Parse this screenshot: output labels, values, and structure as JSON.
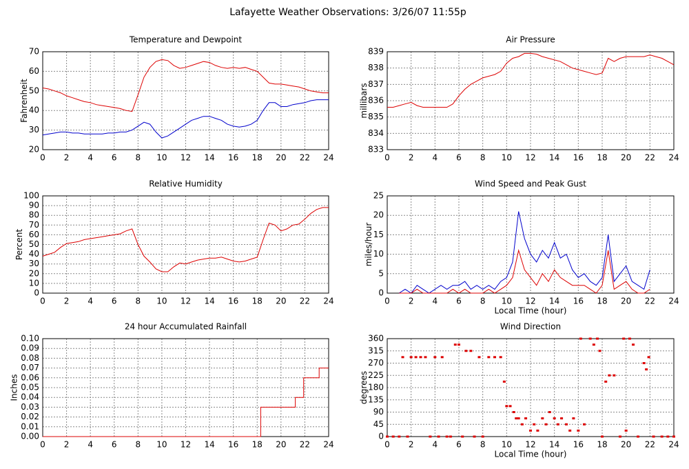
{
  "title": "Lafayette Weather Observations: 3/26/07 11:55p",
  "chart_data": [
    {
      "type": "line",
      "title": "Temperature and Dewpoint",
      "ylabel": "Fahrenheit",
      "grid": true,
      "xlim": [
        0,
        24
      ],
      "xticks": [
        0,
        2,
        4,
        6,
        8,
        10,
        12,
        14,
        16,
        18,
        20,
        22,
        24
      ],
      "ylim": [
        20,
        70
      ],
      "yticks": [
        20,
        30,
        40,
        50,
        60,
        70
      ],
      "x": [
        0,
        0.5,
        1,
        1.5,
        2,
        2.5,
        3,
        3.5,
        4,
        4.5,
        5,
        5.5,
        6,
        6.5,
        7,
        7.5,
        8,
        8.5,
        9,
        9.5,
        10,
        10.5,
        11,
        11.5,
        12,
        12.5,
        13,
        13.5,
        14,
        14.5,
        15,
        15.5,
        16,
        16.5,
        17,
        17.5,
        18,
        18.5,
        19,
        19.5,
        20,
        20.5,
        21,
        21.5,
        22,
        22.5,
        23,
        23.5,
        24
      ],
      "series": [
        {
          "color": "#dd0000",
          "values": [
            51.5,
            51,
            50,
            49,
            47.5,
            46.5,
            45.5,
            44.5,
            44,
            43,
            42.5,
            42,
            41.5,
            41,
            40,
            39.5,
            48,
            57,
            62,
            65,
            66,
            65.5,
            63,
            61.5,
            62,
            63,
            64,
            65,
            64.5,
            63,
            62,
            61.5,
            62,
            61.5,
            62,
            61,
            60,
            57,
            54,
            53.5,
            53.5,
            53,
            52.5,
            52,
            51,
            50,
            49.5,
            49,
            49
          ]
        },
        {
          "color": "#0000cc",
          "values": [
            27.5,
            28,
            28.5,
            29,
            29,
            28.5,
            28.5,
            28,
            28,
            28,
            28,
            28.5,
            28.5,
            29,
            29,
            30,
            32,
            34,
            33,
            29,
            26,
            27,
            29,
            31,
            33,
            35,
            36,
            37,
            37,
            36,
            35,
            33,
            32,
            31.5,
            32,
            33,
            35,
            40,
            44,
            44,
            42,
            42,
            43,
            43.5,
            44,
            45,
            45.5,
            45.5,
            45.5
          ]
        }
      ]
    },
    {
      "type": "line",
      "title": "Air Pressure",
      "ylabel": "millibars",
      "grid": true,
      "xlim": [
        0,
        24
      ],
      "xticks": [
        0,
        2,
        4,
        6,
        8,
        10,
        12,
        14,
        16,
        18,
        20,
        22,
        24
      ],
      "ylim": [
        833,
        839
      ],
      "yticks": [
        833,
        834,
        835,
        836,
        837,
        838,
        839
      ],
      "x": [
        0,
        0.5,
        1,
        1.5,
        2,
        2.5,
        3,
        3.5,
        4,
        4.5,
        5,
        5.5,
        6,
        6.5,
        7,
        7.5,
        8,
        8.5,
        9,
        9.5,
        10,
        10.5,
        11,
        11.5,
        12,
        12.5,
        13,
        13.5,
        14,
        14.5,
        15,
        15.5,
        16,
        16.5,
        17,
        17.5,
        18,
        18.5,
        19,
        19.5,
        20,
        20.5,
        21,
        21.5,
        22,
        22.5,
        23,
        23.5,
        24
      ],
      "series": [
        {
          "color": "#dd0000",
          "values": [
            835.6,
            835.6,
            835.7,
            835.8,
            835.9,
            835.7,
            835.6,
            835.6,
            835.6,
            835.6,
            835.6,
            835.8,
            836.3,
            836.7,
            837,
            837.2,
            837.4,
            837.5,
            837.6,
            837.8,
            838.3,
            838.6,
            838.7,
            838.9,
            838.9,
            838.85,
            838.7,
            838.6,
            838.5,
            838.4,
            838.2,
            838,
            837.9,
            837.8,
            837.7,
            837.6,
            837.7,
            838.6,
            838.4,
            838.6,
            838.7,
            838.7,
            838.7,
            838.7,
            838.8,
            838.7,
            838.6,
            838.4,
            838.2
          ]
        }
      ]
    },
    {
      "type": "line",
      "title": "Relative Humidity",
      "ylabel": "Percent",
      "grid": true,
      "xlim": [
        0,
        24
      ],
      "xticks": [
        0,
        2,
        4,
        6,
        8,
        10,
        12,
        14,
        16,
        18,
        20,
        22,
        24
      ],
      "ylim": [
        0,
        100
      ],
      "yticks": [
        0,
        10,
        20,
        30,
        40,
        50,
        60,
        70,
        80,
        90,
        100
      ],
      "x": [
        0,
        0.5,
        1,
        1.5,
        2,
        2.5,
        3,
        3.5,
        4,
        4.5,
        5,
        5.5,
        6,
        6.5,
        7,
        7.5,
        8,
        8.5,
        9,
        9.5,
        10,
        10.5,
        11,
        11.5,
        12,
        12.5,
        13,
        13.5,
        14,
        14.5,
        15,
        15.5,
        16,
        16.5,
        17,
        17.5,
        18,
        18.5,
        19,
        19.5,
        20,
        20.5,
        21,
        21.5,
        22,
        22.5,
        23,
        23.5,
        24
      ],
      "series": [
        {
          "color": "#dd0000",
          "values": [
            38,
            40,
            42,
            47,
            51,
            52,
            53,
            55,
            56,
            57,
            58,
            59,
            60,
            61,
            64,
            66,
            50,
            38,
            32,
            25,
            22,
            22,
            27,
            31,
            30,
            32,
            34,
            35,
            36,
            36,
            37,
            35,
            33,
            32,
            33,
            35,
            37,
            55,
            72,
            70,
            64,
            66,
            70,
            71,
            76,
            82,
            86,
            88,
            88
          ]
        }
      ]
    },
    {
      "type": "line",
      "title": "Wind Speed and Peak Gust",
      "xlabel": "Local Time (hour)",
      "ylabel": "miles/hour",
      "grid": true,
      "xlim": [
        0,
        24
      ],
      "xticks": [
        0,
        2,
        4,
        6,
        8,
        10,
        12,
        14,
        16,
        18,
        20,
        22,
        24
      ],
      "ylim": [
        0,
        25
      ],
      "yticks": [
        0,
        5,
        10,
        15,
        20,
        25
      ],
      "x": [
        0,
        0.5,
        1,
        1.5,
        2,
        2.5,
        3,
        3.5,
        4,
        4.5,
        5,
        5.5,
        6,
        6.5,
        7,
        7.5,
        8,
        8.5,
        9,
        9.5,
        10,
        10.5,
        11,
        11.5,
        12,
        12.5,
        13,
        13.5,
        14,
        14.5,
        15,
        15.5,
        16,
        16.5,
        17,
        17.5,
        18,
        18.5,
        19,
        19.5,
        20,
        20.5,
        21,
        21.5,
        22,
        22.5,
        23,
        23.5,
        24
      ],
      "series": [
        {
          "color": "#0000cc",
          "values": [
            null,
            null,
            0,
            1,
            0,
            2,
            1,
            0,
            1,
            2,
            1,
            2,
            2,
            3,
            1,
            2,
            1,
            2,
            1,
            3,
            4,
            8,
            21,
            14,
            10,
            8,
            11,
            9,
            13,
            9,
            10,
            6,
            4,
            5,
            3,
            2,
            4,
            15,
            3,
            5,
            7,
            3,
            2,
            1,
            6,
            null,
            null,
            null,
            null
          ]
        },
        {
          "color": "#dd0000",
          "values": [
            null,
            null,
            0,
            0,
            0,
            1,
            0,
            0,
            0,
            0,
            0,
            1,
            0,
            1,
            0,
            0,
            0,
            1,
            0,
            1,
            2,
            4,
            11,
            6,
            4,
            2,
            5,
            3,
            6,
            4,
            3,
            2,
            2,
            2,
            1,
            0,
            2,
            11,
            1,
            2,
            3,
            1,
            0,
            0,
            1,
            null,
            null,
            null,
            null
          ]
        }
      ]
    },
    {
      "type": "line",
      "title": "24 hour Accumulated Rainfall",
      "ylabel": "Inches",
      "grid": true,
      "xlim": [
        0,
        24
      ],
      "xticks": [
        0,
        2,
        4,
        6,
        8,
        10,
        12,
        14,
        16,
        18,
        20,
        22,
        24
      ],
      "ylim": [
        0,
        0.1
      ],
      "yticks": [
        {
          "value": 0,
          "label": "0.00"
        },
        {
          "value": 0.01,
          "label": "0.01"
        },
        {
          "value": 0.02,
          "label": "0.02"
        },
        {
          "value": 0.03,
          "label": "0.03"
        },
        {
          "value": 0.04,
          "label": "0.04"
        },
        {
          "value": 0.05,
          "label": "0.05"
        },
        {
          "value": 0.06,
          "label": "0.06"
        },
        {
          "value": 0.07,
          "label": "0.07"
        },
        {
          "value": 0.08,
          "label": "0.08"
        },
        {
          "value": 0.09,
          "label": "0.09"
        },
        {
          "value": 0.1,
          "label": "0.10"
        }
      ],
      "x": [
        0,
        18.3,
        18.3,
        21.2,
        21.2,
        21.9,
        21.9,
        23.2,
        23.2,
        24
      ],
      "series": [
        {
          "color": "#dd0000",
          "values": [
            0,
            0,
            0.03,
            0.03,
            0.04,
            0.04,
            0.06,
            0.06,
            0.07,
            0.07
          ]
        }
      ]
    },
    {
      "type": "scatter",
      "title": "Wind Direction",
      "xlabel": "Local Time (hour)",
      "ylabel": "degrees",
      "grid": true,
      "xlim": [
        0,
        24
      ],
      "xticks": [
        0,
        2,
        4,
        6,
        8,
        10,
        12,
        14,
        16,
        18,
        20,
        22,
        24
      ],
      "ylim": [
        0,
        360
      ],
      "yticks": [
        0,
        45,
        90,
        135,
        180,
        225,
        270,
        315,
        360
      ],
      "x": [
        0,
        0.5,
        1,
        1.3,
        1.7,
        2,
        2.4,
        2.8,
        3.2,
        3.6,
        4,
        4.3,
        4.6,
        5,
        5.3,
        5.7,
        6,
        6.3,
        6.6,
        7,
        7.3,
        7.7,
        8,
        8.5,
        9,
        9.5,
        9.8,
        10,
        10.3,
        10.6,
        10.8,
        11,
        11.3,
        11.6,
        12,
        12.3,
        12.6,
        13,
        13.3,
        13.6,
        14,
        14.3,
        14.6,
        15,
        15.3,
        15.6,
        16,
        16.2,
        16.5,
        17,
        17.3,
        17.6,
        17.8,
        18,
        18.3,
        18.6,
        19,
        19.5,
        19.8,
        20,
        20.3,
        20.6,
        21,
        21.5,
        21.7,
        21.9,
        22.3,
        23,
        23.5,
        24
      ],
      "series": [
        {
          "color": "#dd0000",
          "values": [
            0,
            0,
            0,
            292,
            0,
            292,
            292,
            292,
            292,
            0,
            292,
            0,
            292,
            0,
            0,
            338,
            338,
            0,
            315,
            315,
            0,
            292,
            0,
            292,
            292,
            292,
            202,
            112,
            112,
            90,
            67,
            67,
            45,
            67,
            22,
            45,
            22,
            67,
            45,
            90,
            67,
            45,
            67,
            45,
            22,
            67,
            22,
            360,
            45,
            360,
            338,
            360,
            315,
            0,
            202,
            225,
            225,
            0,
            360,
            22,
            360,
            338,
            0,
            270,
            247,
            292,
            0,
            0,
            0,
            0
          ]
        }
      ]
    }
  ]
}
